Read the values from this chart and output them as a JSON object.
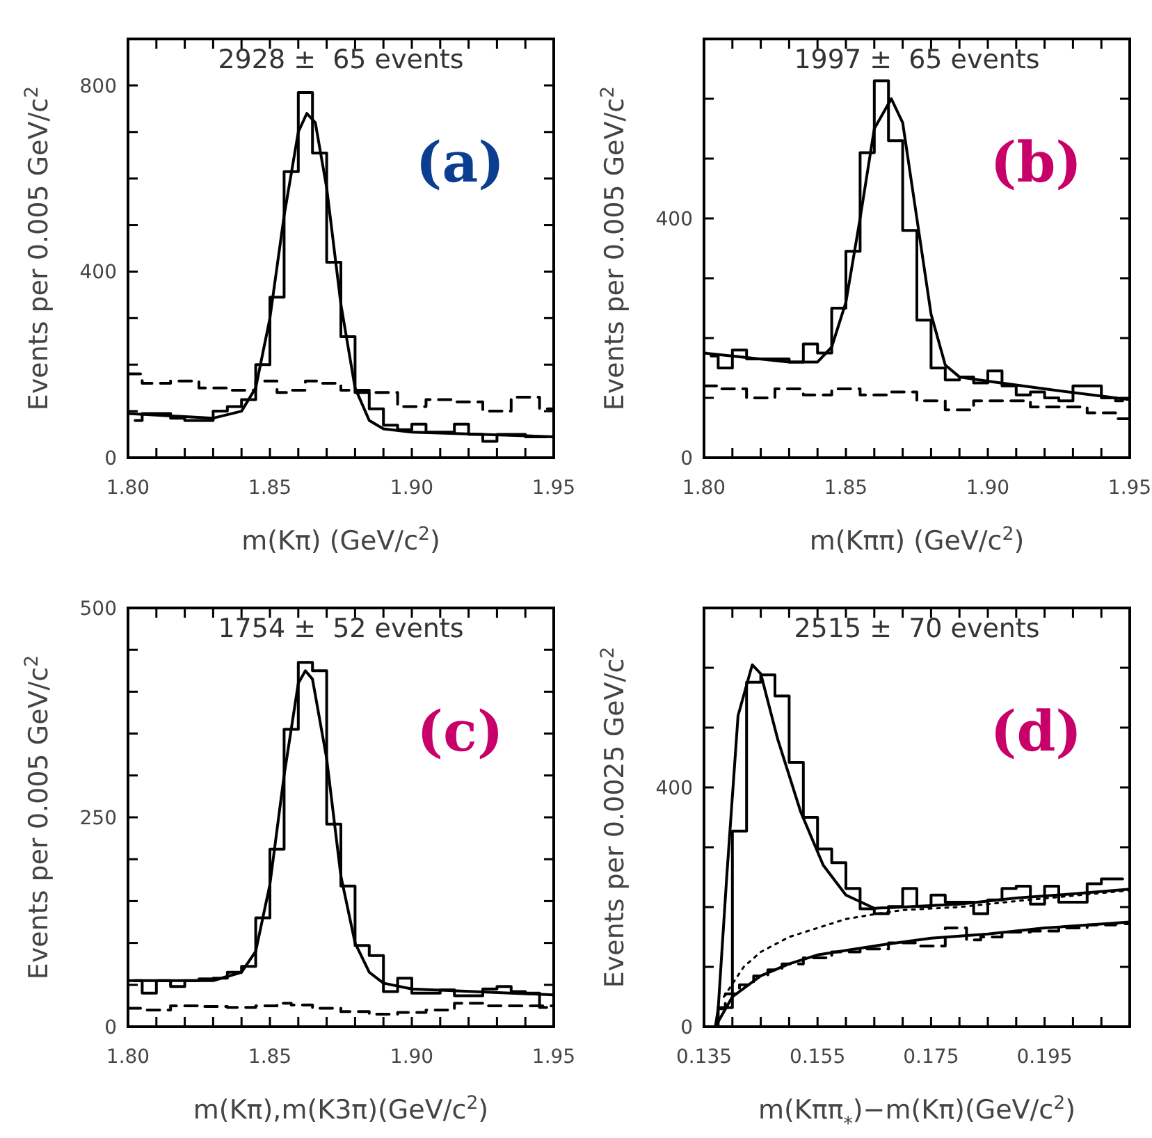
{
  "chart_data": [
    {
      "type": "step",
      "xlabel": "m(Kπ) (GeV/c$^{2}$)",
      "ylabel": "Events per 0.005 GeV/c$^{2}$",
      "annotations": [
        "2928 ±  65 events",
        "(a)"
      ],
      "xlim": [
        1.8,
        1.95
      ],
      "ylim": [
        0,
        900
      ],
      "xticks": [
        {
          "value": 1.8,
          "label": "1.80"
        },
        {
          "value": 1.81,
          "label": null
        },
        {
          "value": 1.82,
          "label": null
        },
        {
          "value": 1.83,
          "label": null
        },
        {
          "value": 1.84,
          "label": null
        },
        1.85,
        {
          "value": 1.86,
          "label": null
        },
        {
          "value": 1.87,
          "label": null
        },
        {
          "value": 1.88,
          "label": null
        },
        {
          "value": 1.89,
          "label": null
        },
        {
          "value": 1.9,
          "label": "1.90"
        },
        {
          "value": 1.91,
          "label": null
        },
        {
          "value": 1.92,
          "label": null
        },
        {
          "value": 1.93,
          "label": null
        },
        {
          "value": 1.94,
          "label": null
        },
        1.95
      ],
      "yticks": [
        0,
        {
          "value": 100,
          "label": null
        },
        {
          "value": 200,
          "label": null
        },
        {
          "value": 300,
          "label": null
        },
        400,
        {
          "value": 500,
          "label": null
        },
        {
          "value": 600,
          "label": null
        },
        {
          "value": 700,
          "label": null
        },
        800
      ],
      "series": [
        {
          "color": "#000000",
          "x": [
            1.8025,
            1.8075,
            1.8125,
            1.8175,
            1.8225,
            1.8275,
            1.8325,
            1.8375,
            1.8425,
            1.8475,
            1.8525,
            1.8575,
            1.8625,
            1.8675,
            1.8725,
            1.8775,
            1.8825,
            1.8875,
            1.8925,
            1.8975,
            1.9025,
            1.9075,
            1.9125,
            1.9175,
            1.9225,
            1.9275,
            1.9325,
            1.9375,
            1.9425,
            1.9475
          ],
          "values": [
            80,
            95,
            95,
            85,
            80,
            80,
            100,
            110,
            125,
            200,
            345,
            615,
            785,
            655,
            420,
            260,
            140,
            105,
            70,
            60,
            72,
            55,
            55,
            72,
            50,
            35,
            50,
            50,
            45,
            45
          ]
        },
        {
          "type": "line",
          "color": "#000000",
          "x": [
            1.8,
            1.83,
            1.84,
            1.845,
            1.85,
            1.855,
            1.86,
            1.863,
            1.866,
            1.87,
            1.875,
            1.88,
            1.885,
            1.89,
            1.9,
            1.95
          ],
          "values": [
            95,
            85,
            100,
            150,
            300,
            520,
            700,
            740,
            720,
            580,
            330,
            150,
            80,
            62,
            55,
            45
          ]
        },
        {
          "type": "step",
          "color": "#000000",
          "line_style": "dashed",
          "x": [
            1.8,
            1.81,
            1.82,
            1.83,
            1.84,
            1.85,
            1.855,
            1.86,
            1.865,
            1.87,
            1.88,
            1.89,
            1.9,
            1.91,
            1.92,
            1.93,
            1.94,
            1.95
          ],
          "values": [
            180,
            160,
            165,
            150,
            145,
            165,
            140,
            145,
            165,
            160,
            145,
            140,
            110,
            125,
            120,
            100,
            130,
            105
          ]
        }
      ]
    },
    {
      "type": "step",
      "xlabel": "m(Kππ) (GeV/c$^{2}$)",
      "ylabel": "Events per 0.005 GeV/c$^{2}$",
      "annotations": [
        "1997 ±  65 events",
        "(b)"
      ],
      "xlim": [
        1.8,
        1.95
      ],
      "ylim": [
        0,
        700
      ],
      "xticks": [
        {
          "value": 1.8,
          "label": "1.80"
        },
        {
          "value": 1.81,
          "label": null
        },
        {
          "value": 1.82,
          "label": null
        },
        {
          "value": 1.83,
          "label": null
        },
        {
          "value": 1.84,
          "label": null
        },
        1.85,
        {
          "value": 1.86,
          "label": null
        },
        {
          "value": 1.87,
          "label": null
        },
        {
          "value": 1.88,
          "label": null
        },
        {
          "value": 1.89,
          "label": null
        },
        {
          "value": 1.9,
          "label": "1.90"
        },
        {
          "value": 1.91,
          "label": null
        },
        {
          "value": 1.92,
          "label": null
        },
        {
          "value": 1.93,
          "label": null
        },
        {
          "value": 1.94,
          "label": null
        },
        1.95
      ],
      "yticks": [
        0,
        {
          "value": 100,
          "label": null
        },
        {
          "value": 200,
          "label": null
        },
        {
          "value": 300,
          "label": null
        },
        400,
        {
          "value": 500,
          "label": null
        },
        {
          "value": 600,
          "label": null
        }
      ],
      "series": [
        {
          "color": "#000000",
          "x": [
            1.8025,
            1.8075,
            1.8125,
            1.8175,
            1.8225,
            1.8275,
            1.8325,
            1.8375,
            1.8425,
            1.8475,
            1.8525,
            1.8575,
            1.8625,
            1.8675,
            1.8725,
            1.8775,
            1.8825,
            1.8875,
            1.8925,
            1.8975,
            1.9025,
            1.9075,
            1.9125,
            1.9175,
            1.9225,
            1.9275,
            1.9325,
            1.9375,
            1.9425,
            1.9475
          ],
          "values": [
            170,
            150,
            180,
            165,
            165,
            165,
            160,
            190,
            175,
            250,
            345,
            510,
            630,
            530,
            380,
            230,
            150,
            130,
            135,
            125,
            145,
            120,
            105,
            110,
            100,
            95,
            120,
            120,
            100,
            95
          ]
        },
        {
          "type": "line",
          "color": "#000000",
          "x": [
            1.8,
            1.83,
            1.84,
            1.845,
            1.85,
            1.855,
            1.86,
            1.866,
            1.87,
            1.875,
            1.88,
            1.885,
            1.89,
            1.9,
            1.92,
            1.95
          ],
          "values": [
            175,
            160,
            160,
            185,
            260,
            400,
            550,
            600,
            560,
            400,
            240,
            155,
            135,
            128,
            115,
            97
          ]
        },
        {
          "type": "step",
          "color": "#000000",
          "line_style": "dashed",
          "x": [
            1.8,
            1.81,
            1.82,
            1.83,
            1.84,
            1.85,
            1.86,
            1.87,
            1.88,
            1.89,
            1.9,
            1.91,
            1.92,
            1.93,
            1.94,
            1.95
          ],
          "values": [
            120,
            115,
            100,
            115,
            105,
            115,
            105,
            110,
            95,
            80,
            95,
            95,
            85,
            85,
            75,
            65
          ]
        }
      ]
    },
    {
      "type": "step",
      "xlabel": "m(Kπ),m(K3π)(GeV/c$^{2}$)",
      "ylabel": "Events per 0.005 GeV/c$^{2}$",
      "annotations": [
        "1754 ±  52 events",
        "(c)"
      ],
      "xlim": [
        1.8,
        1.95
      ],
      "ylim": [
        0,
        500
      ],
      "xticks": [
        {
          "value": 1.8,
          "label": "1.80"
        },
        {
          "value": 1.81,
          "label": null
        },
        {
          "value": 1.82,
          "label": null
        },
        {
          "value": 1.83,
          "label": null
        },
        {
          "value": 1.84,
          "label": null
        },
        1.85,
        {
          "value": 1.86,
          "label": null
        },
        {
          "value": 1.87,
          "label": null
        },
        {
          "value": 1.88,
          "label": null
        },
        {
          "value": 1.89,
          "label": null
        },
        {
          "value": 1.9,
          "label": "1.90"
        },
        {
          "value": 1.91,
          "label": null
        },
        {
          "value": 1.92,
          "label": null
        },
        {
          "value": 1.93,
          "label": null
        },
        {
          "value": 1.94,
          "label": null
        },
        1.95
      ],
      "yticks": [
        0,
        {
          "value": 50,
          "label": null
        },
        {
          "value": 100,
          "label": null
        },
        {
          "value": 150,
          "label": null
        },
        {
          "value": 200,
          "label": null
        },
        250,
        {
          "value": 300,
          "label": null
        },
        {
          "value": 350,
          "label": null
        },
        {
          "value": 400,
          "label": null
        },
        {
          "value": 450,
          "label": null
        },
        500
      ],
      "series": [
        {
          "color": "#000000",
          "x": [
            1.8025,
            1.8075,
            1.8125,
            1.8175,
            1.8225,
            1.8275,
            1.8325,
            1.8375,
            1.8425,
            1.8475,
            1.8525,
            1.8575,
            1.8625,
            1.8675,
            1.8725,
            1.8775,
            1.8825,
            1.8875,
            1.8925,
            1.8975,
            1.9025,
            1.9075,
            1.9125,
            1.9175,
            1.9225,
            1.9275,
            1.9325,
            1.9375,
            1.9425,
            1.9475
          ],
          "values": [
            55,
            40,
            55,
            48,
            55,
            57,
            58,
            65,
            72,
            130,
            212,
            355,
            435,
            425,
            242,
            168,
            97,
            85,
            42,
            58,
            40,
            40,
            44,
            37,
            37,
            45,
            48,
            42,
            40,
            23
          ]
        },
        {
          "type": "line",
          "color": "#000000",
          "x": [
            1.8,
            1.83,
            1.84,
            1.845,
            1.85,
            1.855,
            1.86,
            1.8625,
            1.865,
            1.87,
            1.875,
            1.88,
            1.885,
            1.89,
            1.9,
            1.95
          ],
          "values": [
            55,
            55,
            65,
            90,
            170,
            300,
            410,
            425,
            415,
            320,
            180,
            100,
            65,
            52,
            45,
            38
          ]
        },
        {
          "type": "step",
          "color": "#000000",
          "line_style": "dashed",
          "x": [
            1.8,
            1.81,
            1.82,
            1.83,
            1.84,
            1.85,
            1.855,
            1.86,
            1.87,
            1.88,
            1.89,
            1.9,
            1.91,
            1.92,
            1.93,
            1.95
          ],
          "values": [
            22,
            20,
            25,
            24,
            23,
            25,
            28,
            26,
            22,
            18,
            15,
            17,
            20,
            28,
            25,
            25
          ]
        }
      ]
    },
    {
      "type": "step",
      "xlabel": "m(Kππ$_{*}$)−m(Kπ)(GeV/c$^{2}$)",
      "ylabel": "Events per 0.0025 GeV/c$^{2}$",
      "annotations": [
        "2515 ±  70 events",
        "(d)"
      ],
      "xlim": [
        0.135,
        0.21
      ],
      "ylim": [
        0,
        700
      ],
      "xticks": [
        0.135,
        {
          "value": 0.14,
          "label": null
        },
        {
          "value": 0.145,
          "label": null
        },
        {
          "value": 0.15,
          "label": null
        },
        0.155,
        {
          "value": 0.16,
          "label": null
        },
        {
          "value": 0.165,
          "label": null
        },
        {
          "value": 0.17,
          "label": null
        },
        0.175,
        {
          "value": 0.18,
          "label": null
        },
        {
          "value": 0.185,
          "label": null
        },
        {
          "value": 0.19,
          "label": null
        },
        0.195,
        {
          "value": 0.2,
          "label": null
        },
        {
          "value": 0.205,
          "label": null
        }
      ],
      "yticks": [
        0,
        {
          "value": 100,
          "label": null
        },
        {
          "value": 200,
          "label": null
        },
        {
          "value": 300,
          "label": null
        },
        400,
        {
          "value": 500,
          "label": null
        },
        {
          "value": 600,
          "label": null
        }
      ],
      "series": [
        {
          "color": "#000000",
          "x": [
            0.13625,
            0.13875,
            0.14125,
            0.14375,
            0.14625,
            0.14875,
            0.15125,
            0.15375,
            0.15625,
            0.15875,
            0.16125,
            0.16375,
            0.16625,
            0.16875,
            0.17125,
            0.17375,
            0.17625,
            0.17875,
            0.18125,
            0.18375,
            0.18625,
            0.18875,
            0.19125,
            0.19375,
            0.19625,
            0.19875,
            0.20125,
            0.20375,
            0.20625,
            0.20875
          ],
          "values": [
            0,
            32,
            327,
            576,
            588,
            553,
            442,
            350,
            297,
            274,
            231,
            197,
            189,
            201,
            231,
            201,
            220,
            208,
            208,
            189,
            212,
            231,
            235,
            205,
            235,
            208,
            208,
            239,
            247,
            247
          ]
        },
        {
          "type": "line",
          "color": "#000000",
          "x": [
            0.137,
            0.1375,
            0.139,
            0.141,
            0.1435,
            0.145,
            0.148,
            0.152,
            0.156,
            0.16,
            0.165,
            0.17,
            0.18,
            0.19,
            0.2,
            0.21
          ],
          "values": [
            0,
            30,
            250,
            520,
            605,
            590,
            480,
            360,
            270,
            220,
            198,
            200,
            205,
            215,
            222,
            230
          ]
        },
        {
          "type": "line",
          "color": "#000000",
          "line_style": "dotted",
          "x": [
            0.1385,
            0.142,
            0.145,
            0.15,
            0.155,
            0.16,
            0.165,
            0.17,
            0.18,
            0.19,
            0.21
          ],
          "values": [
            50,
            100,
            125,
            150,
            165,
            180,
            188,
            195,
            200,
            210,
            228
          ]
        },
        {
          "type": "line",
          "color": "#000000",
          "x": [
            0.137,
            0.14,
            0.145,
            0.15,
            0.155,
            0.165,
            0.175,
            0.185,
            0.195,
            0.21
          ],
          "values": [
            0,
            50,
            85,
            105,
            120,
            135,
            148,
            155,
            165,
            175
          ]
        },
        {
          "type": "step",
          "color": "#000000",
          "line_style": "dashed",
          "x": [
            0.1375,
            0.14,
            0.1425,
            0.145,
            0.1475,
            0.15,
            0.155,
            0.16,
            0.165,
            0.17,
            0.175,
            0.18,
            0.1825,
            0.185,
            0.19,
            0.195,
            0.2,
            0.205,
            0.21
          ],
          "values": [
            30,
            55,
            70,
            85,
            95,
            105,
            115,
            125,
            130,
            140,
            135,
            165,
            145,
            150,
            158,
            160,
            165,
            170,
            172
          ]
        }
      ]
    }
  ]
}
